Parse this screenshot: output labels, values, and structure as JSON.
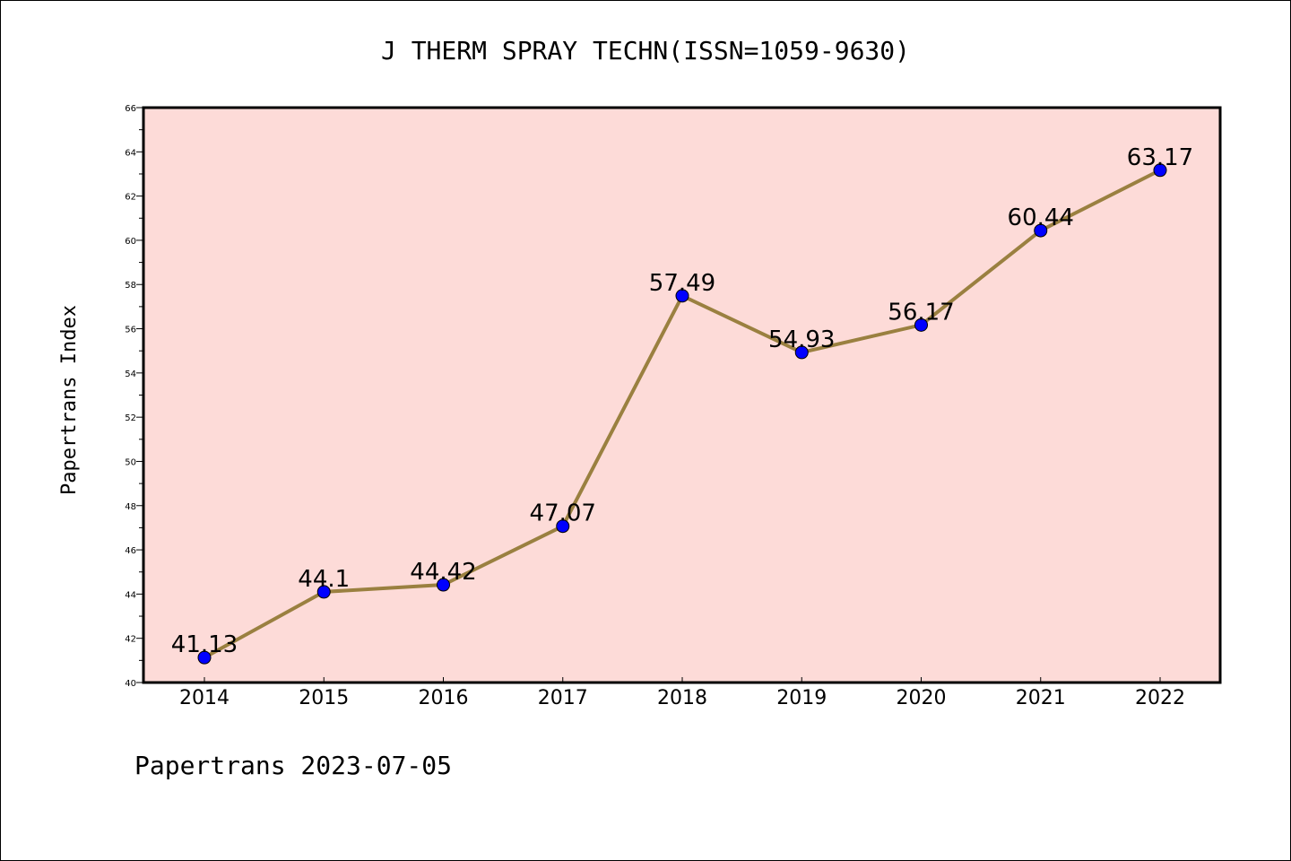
{
  "chart_data": {
    "type": "line",
    "title": "J THERM SPRAY TECHN(ISSN=1059-9630)",
    "ylabel": "Papertrans Index",
    "xlabel": "",
    "footer": "Papertrans 2023-07-05",
    "categories": [
      "2014",
      "2015",
      "2016",
      "2017",
      "2018",
      "2019",
      "2020",
      "2021",
      "2022"
    ],
    "series": [
      {
        "values": [
          41.13,
          44.1,
          44.42,
          47.07,
          57.49,
          54.93,
          56.17,
          60.44,
          63.17
        ],
        "labels": [
          "41.13",
          "44.1",
          "44.42",
          "47.07",
          "57.49",
          "54.93",
          "56.17",
          "60.44",
          "63.17"
        ]
      }
    ],
    "ylim": [
      40,
      66
    ],
    "ymajor_ticks": [
      "40",
      "42",
      "44",
      "46",
      "48",
      "50",
      "52",
      "54",
      "56",
      "58",
      "60",
      "62",
      "64",
      "66"
    ],
    "grid": false,
    "legend": "none",
    "colors": {
      "plot_background": "#FDDBD8",
      "line": "#9A8040",
      "marker": "#0000FF"
    }
  }
}
